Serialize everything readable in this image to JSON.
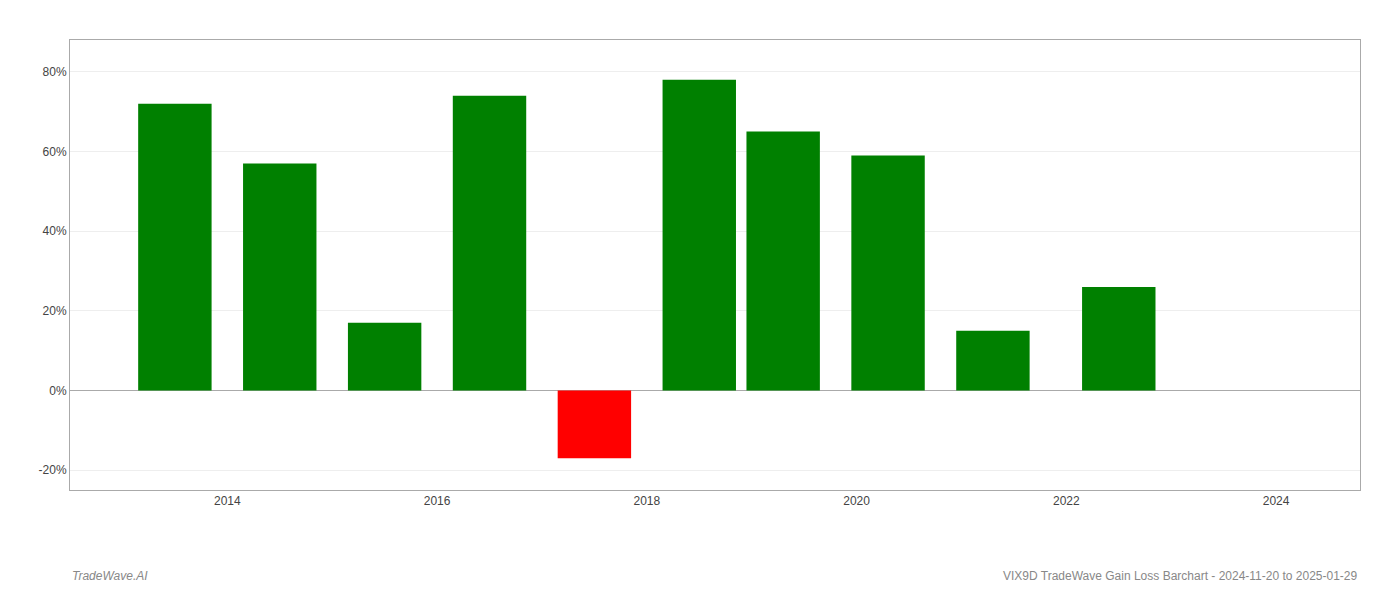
{
  "chart_data": {
    "type": "bar",
    "x": [
      2013.5,
      2014.5,
      2015.5,
      2016.5,
      2017.5,
      2018.5,
      2019.3,
      2020.3,
      2021.3,
      2022.5
    ],
    "values": [
      0.72,
      0.57,
      0.17,
      0.74,
      -0.17,
      0.78,
      0.65,
      0.59,
      0.15,
      0.26
    ],
    "colors": [
      "#008000",
      "#008000",
      "#008000",
      "#008000",
      "#ff0000",
      "#008000",
      "#008000",
      "#008000",
      "#008000",
      "#008000"
    ],
    "xlim": [
      2012.5,
      2024.8
    ],
    "xticks": [
      2014,
      2016,
      2018,
      2020,
      2022,
      2024
    ],
    "ylim": [
      -0.25,
      0.88
    ],
    "yticks": [
      {
        "value": -0.2,
        "label": "-20%"
      },
      {
        "value": 0.0,
        "label": "0%"
      },
      {
        "value": 0.2,
        "label": "20%"
      },
      {
        "value": 0.4,
        "label": "40%"
      },
      {
        "value": 0.6,
        "label": "60%"
      },
      {
        "value": 0.8,
        "label": "80%"
      }
    ],
    "grid": true,
    "annotations": [
      "TradeWave.AI",
      "VIX9D TradeWave Gain Loss Barchart - 2024-11-20 to 2025-01-29"
    ]
  }
}
